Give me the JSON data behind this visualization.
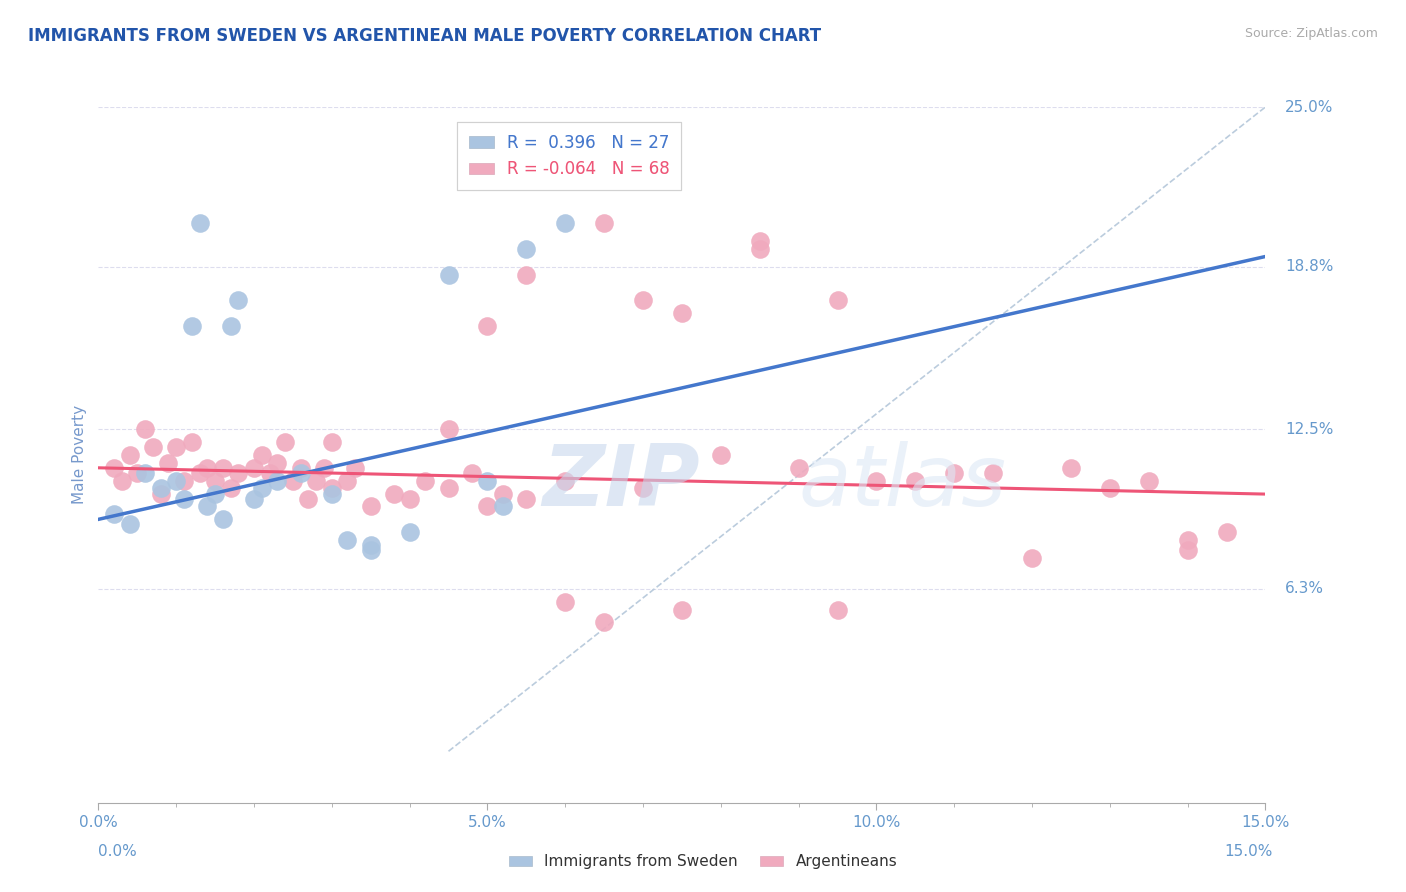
{
  "title": "IMMIGRANTS FROM SWEDEN VS ARGENTINEAN MALE POVERTY CORRELATION CHART",
  "source_text": "Source: ZipAtlas.com",
  "ylabel": "Male Poverty",
  "xmin": 0.0,
  "xmax": 15.0,
  "ymin": -2.0,
  "ymax": 25.0,
  "xticks": [
    0.0,
    5.0,
    10.0,
    15.0
  ],
  "xticklabels": [
    "0.0%",
    "5.0%",
    "10.0%",
    "15.0%"
  ],
  "ytick_values": [
    6.3,
    12.5,
    18.8,
    25.0
  ],
  "ytick_labels": [
    "6.3%",
    "12.5%",
    "18.8%",
    "25.0%"
  ],
  "blue_color": "#aac4e0",
  "pink_color": "#f0aabe",
  "blue_line_color": "#4477cc",
  "pink_line_color": "#ee5577",
  "dashed_line_color": "#bbccdd",
  "blue_R": 0.396,
  "blue_N": 27,
  "pink_R": -0.064,
  "pink_N": 68,
  "watermark_zip": "ZIP",
  "watermark_atlas": "atlas",
  "title_color": "#2255aa",
  "axis_label_color": "#7799cc",
  "tick_label_color": "#6699cc",
  "grid_color": "#ddddee",
  "blue_scatter_x": [
    0.2,
    0.4,
    0.6,
    0.8,
    1.0,
    1.1,
    1.2,
    1.3,
    1.4,
    1.5,
    1.6,
    1.7,
    1.8,
    2.0,
    2.1,
    2.3,
    2.6,
    3.0,
    3.5,
    4.0,
    4.5,
    5.5,
    6.0,
    3.5,
    5.0,
    5.2,
    3.2
  ],
  "blue_scatter_y": [
    9.2,
    8.8,
    10.8,
    10.2,
    10.5,
    9.8,
    16.5,
    20.5,
    9.5,
    10.0,
    9.0,
    16.5,
    17.5,
    9.8,
    10.2,
    10.5,
    10.8,
    10.0,
    7.8,
    8.5,
    18.5,
    19.5,
    20.5,
    8.0,
    10.5,
    9.5,
    8.2
  ],
  "pink_scatter_x": [
    0.2,
    0.3,
    0.4,
    0.5,
    0.6,
    0.7,
    0.8,
    0.9,
    1.0,
    1.1,
    1.2,
    1.3,
    1.4,
    1.5,
    1.6,
    1.7,
    1.8,
    2.0,
    2.1,
    2.2,
    2.3,
    2.4,
    2.5,
    2.6,
    2.7,
    2.8,
    2.9,
    3.0,
    3.2,
    3.3,
    3.5,
    3.8,
    4.0,
    4.2,
    4.5,
    4.8,
    5.0,
    5.2,
    5.5,
    6.0,
    6.5,
    7.0,
    7.5,
    8.0,
    8.5,
    9.0,
    9.5,
    10.0,
    11.0,
    12.0,
    13.0,
    14.0,
    3.0,
    4.5,
    5.5,
    6.5,
    7.0,
    8.5,
    9.5,
    10.5,
    11.5,
    12.5,
    13.5,
    14.5,
    5.0,
    6.0,
    7.5,
    14.0
  ],
  "pink_scatter_y": [
    11.0,
    10.5,
    11.5,
    10.8,
    12.5,
    11.8,
    10.0,
    11.2,
    11.8,
    10.5,
    12.0,
    10.8,
    11.0,
    10.5,
    11.0,
    10.2,
    10.8,
    11.0,
    11.5,
    10.8,
    11.2,
    12.0,
    10.5,
    11.0,
    9.8,
    10.5,
    11.0,
    10.2,
    10.5,
    11.0,
    9.5,
    10.0,
    9.8,
    10.5,
    10.2,
    10.8,
    9.5,
    10.0,
    9.8,
    10.5,
    5.0,
    10.2,
    5.5,
    11.5,
    19.5,
    11.0,
    17.5,
    10.5,
    10.8,
    7.5,
    10.2,
    7.8,
    12.0,
    12.5,
    18.5,
    20.5,
    17.5,
    19.8,
    5.5,
    10.5,
    10.8,
    11.0,
    10.5,
    8.5,
    16.5,
    5.8,
    17.0,
    8.2
  ]
}
